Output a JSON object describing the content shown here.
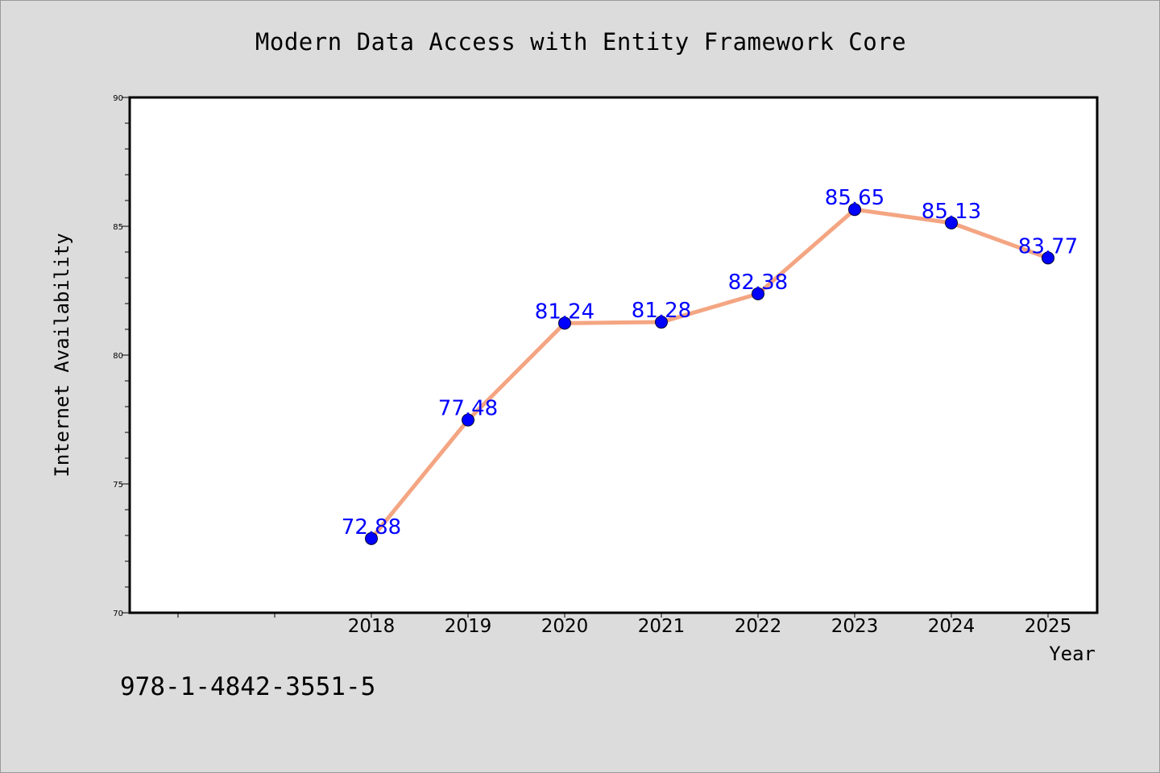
{
  "title": "Modern Data Access with Entity Framework Core",
  "footer": "978-1-4842-3551-5",
  "colors": {
    "background": "#dcdcdc",
    "plot_area": "#ffffff",
    "line": "#f4a582",
    "marker": "#0000ff",
    "data_label": "#0000ff"
  },
  "chart_data": {
    "type": "line",
    "x": [
      "2018",
      "2019",
      "2020",
      "2021",
      "2022",
      "2023",
      "2024",
      "2025"
    ],
    "y": [
      72.88,
      77.48,
      81.24,
      81.28,
      82.38,
      85.65,
      85.13,
      83.77
    ],
    "data_labels": [
      "72.88",
      "77.48",
      "81.24",
      "81.28",
      "82.38",
      "85.65",
      "85.13",
      "83.77"
    ],
    "xlabel": "Year",
    "ylabel": "Internet Availability",
    "ylim": [
      70,
      90
    ],
    "y_ticks": [
      70,
      75,
      80,
      85,
      90
    ],
    "x_extra_ticks_left": 2,
    "grid": false,
    "marker": "circle"
  }
}
